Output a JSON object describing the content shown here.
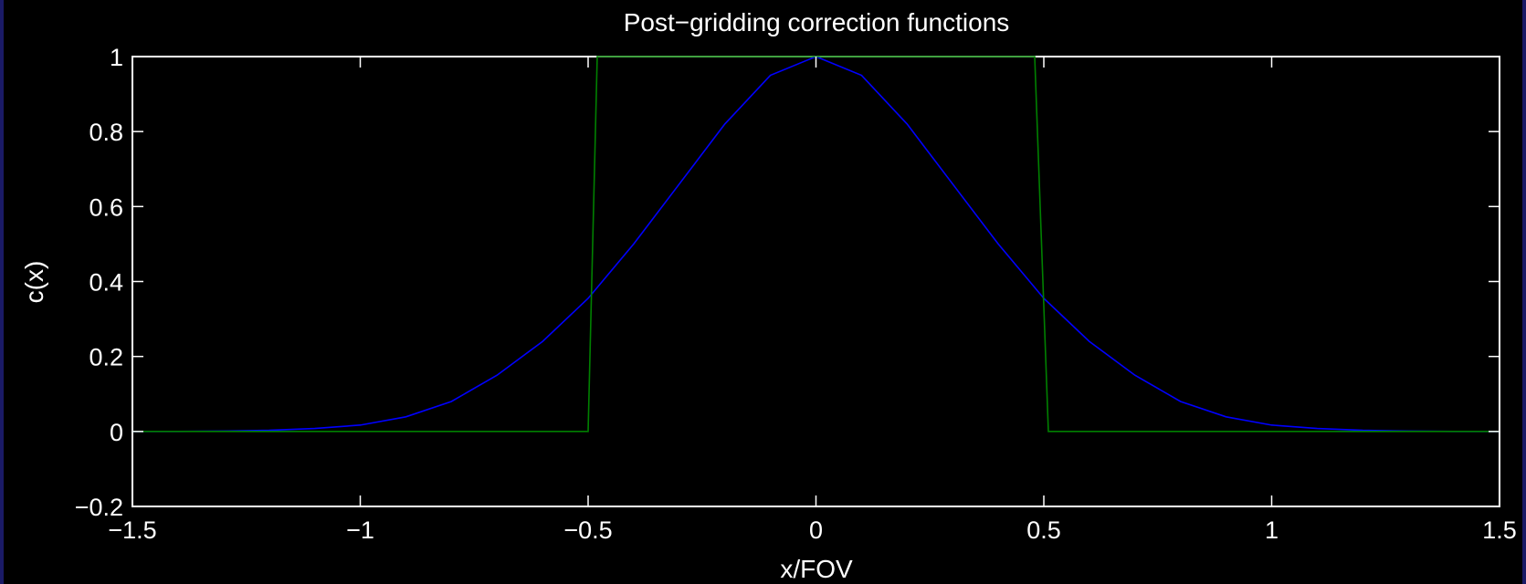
{
  "chart_data": {
    "type": "line",
    "title": "Post−gridding correction functions",
    "xlabel": "x/FOV",
    "ylabel": "c(x)",
    "xlim": [
      -1.5,
      1.5
    ],
    "ylim": [
      -0.2,
      1
    ],
    "xticks": [
      -1.5,
      -1,
      -0.5,
      0,
      0.5,
      1,
      1.5
    ],
    "xtick_labels": [
      "−1.5",
      "−1",
      "−0.5",
      "0",
      "0.5",
      "1",
      "1.5"
    ],
    "yticks": [
      -0.2,
      0,
      0.2,
      0.4,
      0.6,
      0.8,
      1
    ],
    "ytick_labels": [
      "−0.2",
      "0",
      "0.2",
      "0.4",
      "0.6",
      "0.8",
      "1"
    ],
    "grid": false,
    "background": "#000000",
    "axis_color": "#ffffff",
    "series": [
      {
        "color": "#0000ff",
        "x": [
          -1.5,
          -1.4,
          -1.3,
          -1.2,
          -1.1,
          -1.0,
          -0.9,
          -0.8,
          -0.7,
          -0.6,
          -0.5,
          -0.4,
          -0.3,
          -0.2,
          -0.1,
          0,
          0.1,
          0.2,
          0.3,
          0.4,
          0.5,
          0.6,
          0.7,
          0.8,
          0.9,
          1.0,
          1.1,
          1.2,
          1.3,
          1.4,
          1.5
        ],
        "y": [
          0.0,
          0.0,
          0.001,
          0.003,
          0.008,
          0.017,
          0.039,
          0.08,
          0.15,
          0.24,
          0.355,
          0.5,
          0.66,
          0.82,
          0.95,
          1.0,
          0.95,
          0.82,
          0.66,
          0.5,
          0.355,
          0.24,
          0.15,
          0.08,
          0.039,
          0.017,
          0.008,
          0.003,
          0.001,
          0.0,
          0.0
        ]
      },
      {
        "color": "#008000",
        "x": [
          -1.5,
          -0.5,
          -0.48,
          0.48,
          0.51,
          1.5
        ],
        "y": [
          0,
          0,
          1,
          1,
          0,
          0
        ]
      }
    ]
  }
}
